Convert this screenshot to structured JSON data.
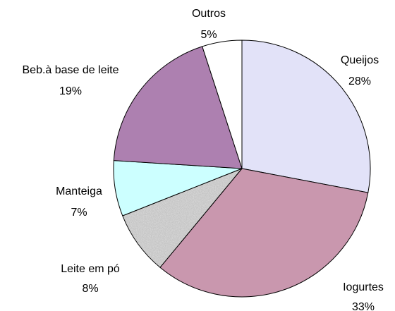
{
  "chart_data": {
    "type": "pie",
    "categories": [
      "Queijos",
      "Iogurtes",
      "Leite em pó",
      "Manteiga",
      "Beb.à base de leite",
      "Outros"
    ],
    "values": [
      28,
      33,
      8,
      7,
      19,
      5
    ],
    "value_labels": [
      "28%",
      "33%",
      "8%",
      "7%",
      "19%",
      "5%"
    ],
    "colors": [
      "#e2e2f8",
      "#c997ae",
      "texture",
      "#ccffff",
      "#ad80b0",
      "#ffffff"
    ]
  }
}
